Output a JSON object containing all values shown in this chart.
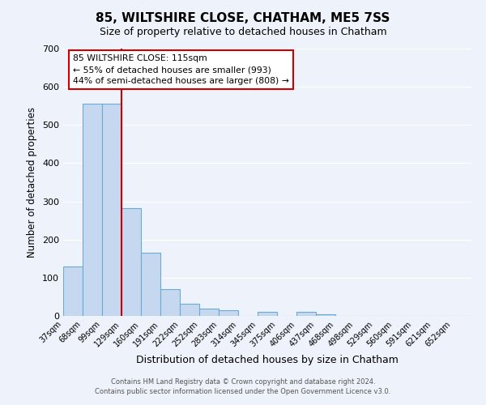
{
  "title": "85, WILTSHIRE CLOSE, CHATHAM, ME5 7SS",
  "subtitle": "Size of property relative to detached houses in Chatham",
  "xlabel": "Distribution of detached houses by size in Chatham",
  "ylabel": "Number of detached properties",
  "bar_labels": [
    "37sqm",
    "68sqm",
    "99sqm",
    "129sqm",
    "160sqm",
    "191sqm",
    "222sqm",
    "252sqm",
    "283sqm",
    "314sqm",
    "345sqm",
    "375sqm",
    "406sqm",
    "437sqm",
    "468sqm",
    "498sqm",
    "529sqm",
    "560sqm",
    "591sqm",
    "621sqm",
    "652sqm"
  ],
  "bar_values": [
    130,
    555,
    555,
    283,
    165,
    70,
    32,
    20,
    15,
    0,
    10,
    0,
    10,
    5,
    0,
    0,
    0,
    0,
    0,
    0,
    0
  ],
  "bar_color": "#c5d8f0",
  "bar_edgecolor": "#6aaad4",
  "bar_linewidth": 0.8,
  "red_line_index": 3,
  "redline_color": "#cc0000",
  "annotation_text": "85 WILTSHIRE CLOSE: 115sqm\n← 55% of detached houses are smaller (993)\n44% of semi-detached houses are larger (808) →",
  "annotation_box_edgecolor": "#cc0000",
  "annotation_box_facecolor": "#ffffff",
  "ylim": [
    0,
    700
  ],
  "yticks": [
    0,
    100,
    200,
    300,
    400,
    500,
    600,
    700
  ],
  "footer1": "Contains HM Land Registry data © Crown copyright and database right 2024.",
  "footer2": "Contains public sector information licensed under the Open Government Licence v3.0.",
  "bg_color": "#eef2fa",
  "plot_bg_color": "#eef2fa"
}
